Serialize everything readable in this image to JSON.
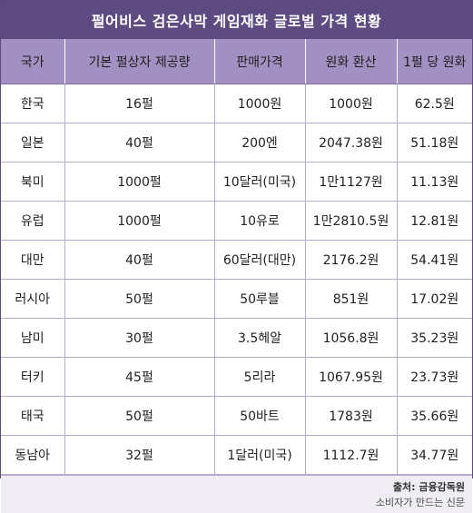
{
  "title": "펄어비스 검은사막 게임재화 글로벌 가격 현황",
  "table": {
    "headers": [
      "국가",
      "기본 펄상자 제공량",
      "판매가격",
      "원화 환산",
      "1펄 당 원화"
    ],
    "rows": [
      [
        "한국",
        "16펄",
        "1000원",
        "1000원",
        "62.5원"
      ],
      [
        "일본",
        "40펄",
        "200엔",
        "2047.38원",
        "51.18원"
      ],
      [
        "북미",
        "1000펄",
        "10달러(미국)",
        "1만1127원",
        "11.13원"
      ],
      [
        "유럽",
        "1000펄",
        "10유로",
        "1만2810.5원",
        "12.81원"
      ],
      [
        "대만",
        "40펄",
        "60달러(대만)",
        "2176.2원",
        "54.41원"
      ],
      [
        "러시아",
        "50펄",
        "50루블",
        "851원",
        "17.02원"
      ],
      [
        "남미",
        "30펄",
        "3.5헤알",
        "1056.8원",
        "35.23원"
      ],
      [
        "터키",
        "45펄",
        "5리라",
        "1067.95원",
        "23.73원"
      ],
      [
        "태국",
        "50펄",
        "50바트",
        "1783원",
        "35.66원"
      ],
      [
        "동남아",
        "32펄",
        "1달러(미국)",
        "1112.7원",
        "34.77원"
      ]
    ]
  },
  "footer": {
    "source": "출처: 금융감독원",
    "brand": "소비자가 만드는 신문"
  },
  "colors": {
    "title_bg": "#5c4a80",
    "header_bg": "#a190c1",
    "footer_bg": "#f0ecf4"
  }
}
